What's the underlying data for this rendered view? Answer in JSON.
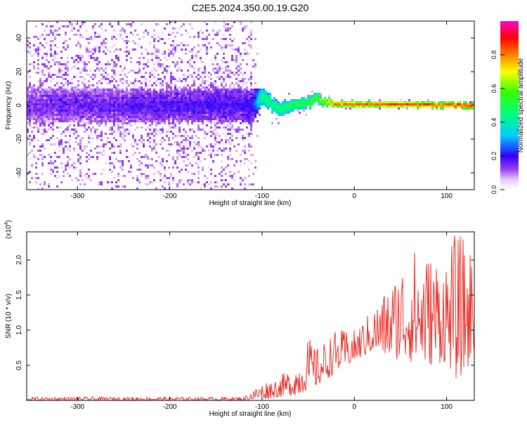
{
  "title": "C2E5.2024.350.00.19.G20",
  "chart_data": [
    {
      "type": "heatmap",
      "xlabel": "Height of straight line (km)",
      "ylabel": "Frequency (Hz)",
      "xlim": [
        -355,
        130
      ],
      "ylim": [
        -50,
        50
      ],
      "xticks": [
        -300,
        -200,
        -100,
        0,
        100
      ],
      "yticks": [
        -40,
        -20,
        0,
        20,
        40
      ],
      "colorbar": {
        "label": "Normalized spectral amplitude",
        "range": [
          0,
          1
        ],
        "ticks": [
          "0.0",
          "0.2",
          "0.4",
          "0.6",
          "0.8"
        ],
        "colormap": "rainbow (white to violet to blue to cyan to green to yellow to red to magenta)"
      },
      "description_points": [
        {
          "x": -355,
          "center_freq": 0,
          "band_halfwidth": 10,
          "amplitude": 0.15,
          "noise_spread": 50
        },
        {
          "x": -110,
          "center_freq": 0,
          "band_halfwidth": 10,
          "amplitude": 0.2,
          "noise_spread": 50
        },
        {
          "x": -100,
          "center_freq": 5,
          "band_halfwidth": 5,
          "amplitude": 0.5,
          "noise_spread": 10
        },
        {
          "x": -80,
          "center_freq": -2,
          "band_halfwidth": 4,
          "amplitude": 0.5,
          "noise_spread": 10
        },
        {
          "x": -40,
          "center_freq": 4,
          "band_halfwidth": 3,
          "amplitude": 0.6,
          "noise_spread": 5
        },
        {
          "x": -20,
          "center_freq": 1,
          "band_halfwidth": 2,
          "amplitude": 0.85,
          "noise_spread": 3
        },
        {
          "x": 130,
          "center_freq": 0,
          "band_halfwidth": 2,
          "amplitude": 0.9,
          "noise_spread": 3
        }
      ]
    },
    {
      "type": "line",
      "xlabel": "Height of straight line (km)",
      "ylabel": "SNR (10 * v/v)",
      "multiplier_label": "(x10",
      "multiplier_exp": "4",
      "multiplier_close": ")",
      "xlim": [
        -355,
        130
      ],
      "ylim": [
        0,
        2.4
      ],
      "xticks": [
        -300,
        -200,
        -100,
        0,
        100
      ],
      "yticks": [
        "0.5",
        "1.0",
        "1.5",
        "2.0"
      ],
      "color": "#e8302a",
      "envelope": {
        "x": [
          -355,
          -120,
          -100,
          -80,
          -60,
          -50,
          -40,
          -20,
          0,
          20,
          40,
          60,
          80,
          100,
          110,
          120,
          130
        ],
        "low": [
          0.0,
          0.0,
          0.02,
          0.05,
          0.08,
          0.15,
          0.2,
          0.4,
          0.55,
          0.7,
          0.6,
          0.55,
          0.5,
          0.55,
          0.3,
          0.4,
          0.6
        ],
        "high": [
          0.05,
          0.05,
          0.25,
          0.35,
          0.55,
          0.9,
          0.75,
          1.0,
          1.0,
          1.3,
          1.7,
          2.2,
          2.1,
          2.1,
          2.4,
          2.3,
          2.2
        ]
      }
    }
  ]
}
